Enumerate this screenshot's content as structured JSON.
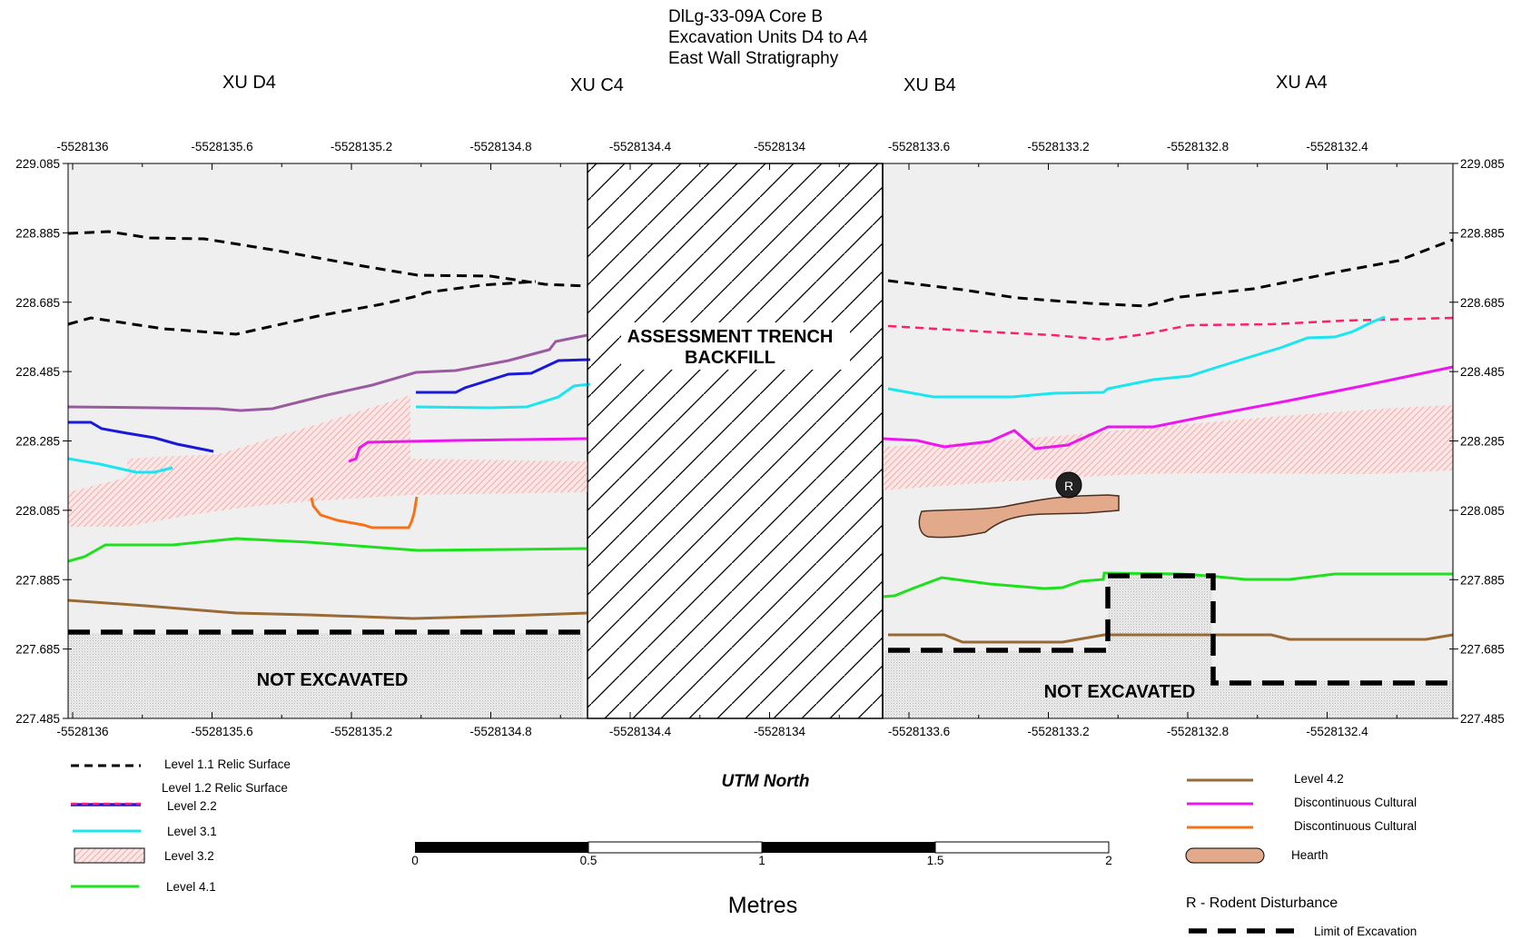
{
  "title": [
    "DlLg-33-09A Core B",
    "Excavation  Units D4 to A4",
    "East Wall Stratigraphy"
  ],
  "units": [
    "XU D4",
    "XU C4",
    "XU B4",
    "XU A4"
  ],
  "x_axis_ticks": [
    "-5528136",
    "-5528135.6",
    "-5528135.2",
    "-5528134.8",
    "-5528134.4",
    "-5528134",
    "-5528133.6",
    "-5528133.2",
    "-5528132.8",
    "-5528132.4"
  ],
  "y_axis_ticks": [
    "229.085",
    "228.885",
    "228.685",
    "228.485",
    "228.285",
    "228.085",
    "227.885",
    "227.685",
    "227.485"
  ],
  "labels": {
    "backfill": [
      "ASSESSMENT TRENCH",
      "BACKFILL"
    ],
    "not_excavated": "NOT EXCAVATED",
    "rodent_symbol": "R",
    "utm": "UTM North",
    "metres": "Metres"
  },
  "scale_bar": {
    "ticks": [
      "0",
      "0.5",
      "1",
      "1.5",
      "2"
    ]
  },
  "legend_left": [
    {
      "label": "Level 1.1 Relic Surface",
      "symbol": "black-dashed-line"
    },
    {
      "label": "Level 1.2  Relic Surface",
      "symbol": "pink-dashed-line"
    },
    {
      "label": "Level 2.2",
      "symbol": "blue-line"
    },
    {
      "label": "Level 3.1",
      "symbol": "cyan-line"
    },
    {
      "label": "Level 3.2",
      "symbol": "pink-hatched-box"
    },
    {
      "label": "Level 4.1",
      "symbol": "green-line"
    }
  ],
  "legend_right": [
    {
      "label": "Level 4.2",
      "symbol": "brown-line"
    },
    {
      "label": "Discontinuous Cultural",
      "symbol": "magenta-line"
    },
    {
      "label": "Discontinuous Cultural",
      "symbol": "orange-line"
    },
    {
      "label": "Hearth",
      "symbol": "hearth-shape"
    },
    {
      "label": "R - Rodent Disturbance",
      "symbol": "none"
    },
    {
      "label": "Limit of Excavation",
      "symbol": "thick-dashed-line"
    }
  ],
  "colors": {
    "level_1_1": "#000000",
    "level_1_2": "#ff1f6a",
    "level_2_2": "#1a1ad6",
    "level_3_1": "#19e6f0",
    "level_3_2": "#f2a8a8",
    "level_4_1": "#1fe01f",
    "level_4_2": "#9a6a36",
    "disc_cultural_magenta": "#ee16ee",
    "disc_cultural_orange": "#f57217",
    "upper_line_purple": "#9a5aa0",
    "hearth": "#e2aa8a",
    "background_fill": "#efefef"
  }
}
